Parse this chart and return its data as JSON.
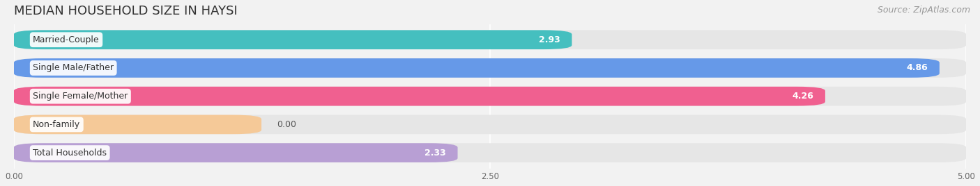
{
  "title": "MEDIAN HOUSEHOLD SIZE IN HAYSI",
  "source": "Source: ZipAtlas.com",
  "categories": [
    "Married-Couple",
    "Single Male/Father",
    "Single Female/Mother",
    "Non-family",
    "Total Households"
  ],
  "values": [
    2.93,
    4.86,
    4.26,
    0.0,
    2.33
  ],
  "bar_colors": [
    "#45bfbf",
    "#6699e8",
    "#f06090",
    "#f5c998",
    "#b89fd4"
  ],
  "bar_edge_colors": [
    "#45bfbf",
    "#6699e8",
    "#f06090",
    "#f5c998",
    "#b89fd4"
  ],
  "xlim": [
    0,
    5.0
  ],
  "xticks": [
    0.0,
    2.5,
    5.0
  ],
  "xtick_labels": [
    "0.00",
    "2.50",
    "5.00"
  ],
  "title_fontsize": 13,
  "source_fontsize": 9,
  "label_fontsize": 9,
  "value_fontsize": 9,
  "background_color": "#f2f2f2",
  "bar_background_color": "#e6e6e6",
  "non_family_bar_width": 1.3
}
